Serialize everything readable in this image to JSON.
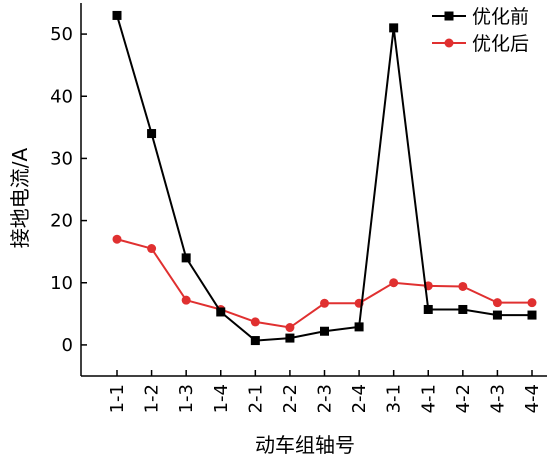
{
  "chart_data": {
    "type": "line",
    "categories": [
      "1-1",
      "1-2",
      "1-3",
      "1-4",
      "2-1",
      "2-2",
      "2-3",
      "2-4",
      "3-1",
      "4-1",
      "4-2",
      "4-3",
      "4-4"
    ],
    "series": [
      {
        "name": "优化前",
        "color": "#000000",
        "marker": "square",
        "values": [
          53,
          34,
          14,
          5.3,
          0.7,
          1.1,
          2.2,
          2.9,
          51,
          5.7,
          5.7,
          4.8,
          4.8
        ]
      },
      {
        "name": "优化后",
        "color": "#e03030",
        "marker": "circle",
        "values": [
          17,
          15.5,
          7.2,
          5.7,
          3.7,
          2.8,
          6.7,
          6.7,
          10,
          9.5,
          9.4,
          6.8,
          6.8
        ]
      }
    ],
    "xlabel": "动车组轴号",
    "ylabel": "接地电流/A",
    "ylim": [
      -5,
      55
    ],
    "yticks": [
      0,
      10,
      20,
      30,
      40,
      50
    ],
    "grid": false,
    "legend_position": "top-right"
  }
}
